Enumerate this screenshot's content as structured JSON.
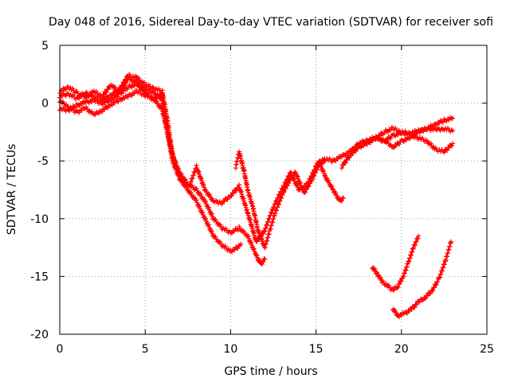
{
  "chart_data": {
    "type": "scatter",
    "title": "Day 048 of 2016, Sidereal Day-to-day VTEC variation (SDTVAR) for receiver sofi",
    "xlabel": "GPS time / hours",
    "ylabel": "SDTVAR / TECUs",
    "xlim": [
      0,
      25
    ],
    "ylim": [
      -20,
      5
    ],
    "xticks": [
      0,
      5,
      10,
      15,
      20,
      25
    ],
    "yticks": [
      -20,
      -15,
      -10,
      -5,
      0,
      5
    ],
    "xtick_labels": [
      "0",
      "5",
      "10",
      "15",
      "20",
      "25"
    ],
    "ytick_labels": [
      "-20",
      "-15",
      "-10",
      "-5",
      "0",
      "5"
    ],
    "grid": true,
    "marker": "+",
    "color": "#ff0000",
    "series": [
      {
        "name": "track-1",
        "x": [
          0.0,
          0.5,
          1.0,
          1.5,
          2.0,
          2.5,
          3.0,
          3.5,
          4.0,
          4.5,
          5.0,
          5.5,
          6.0,
          6.3,
          6.6,
          7.0,
          7.5,
          8.0,
          8.5,
          9.0,
          9.5,
          10.0,
          10.3,
          10.6
        ],
        "y": [
          1.0,
          1.4,
          0.9,
          0.5,
          1.0,
          0.6,
          1.6,
          0.9,
          2.1,
          1.8,
          1.2,
          0.9,
          0.3,
          -2.5,
          -5.0,
          -6.5,
          -7.5,
          -8.5,
          -10.0,
          -11.5,
          -12.3,
          -12.8,
          -12.6,
          -12.2
        ]
      },
      {
        "name": "track-2",
        "x": [
          0.0,
          0.5,
          1.0,
          1.5,
          2.0,
          2.5,
          3.0,
          3.5,
          4.0,
          4.5,
          5.0,
          5.5,
          6.0,
          6.3,
          6.6,
          7.0,
          7.5,
          8.0,
          8.5,
          9.0,
          9.5,
          10.0,
          10.5,
          11.0,
          11.3,
          11.6,
          11.8,
          12.0
        ],
        "y": [
          0.6,
          0.8,
          0.4,
          0.9,
          0.5,
          0.3,
          0.7,
          1.2,
          2.4,
          2.2,
          1.6,
          1.3,
          1.0,
          -1.5,
          -4.5,
          -6.0,
          -7.0,
          -7.5,
          -8.5,
          -10.0,
          -10.8,
          -11.2,
          -10.8,
          -11.5,
          -12.5,
          -13.5,
          -13.9,
          -13.5
        ]
      },
      {
        "name": "track-3",
        "x": [
          0.0,
          0.5,
          1.0,
          1.5,
          2.0,
          2.5,
          3.0,
          3.5,
          4.0,
          4.5,
          5.0,
          5.5,
          6.0,
          6.4,
          6.8,
          7.2,
          7.6,
          8.0,
          8.5,
          9.0,
          9.5,
          10.0,
          10.5,
          11.0,
          11.5,
          12.0,
          12.5,
          13.0,
          13.5,
          14.0,
          14.5,
          15.0,
          15.5
        ],
        "y": [
          -0.5,
          -0.6,
          -0.2,
          0.1,
          0.2,
          0.0,
          0.3,
          0.8,
          1.4,
          1.6,
          0.9,
          0.4,
          -0.6,
          -3.2,
          -5.5,
          -6.8,
          -7.1,
          -5.5,
          -7.5,
          -8.5,
          -8.6,
          -8.0,
          -7.2,
          -9.5,
          -12.0,
          -11.0,
          -9.0,
          -7.5,
          -6.0,
          -7.5,
          -7.0,
          -5.5,
          -5.0
        ]
      },
      {
        "name": "track-4",
        "x": [
          0.0,
          0.5,
          1.0,
          1.5,
          2.0,
          2.5,
          3.0,
          3.5,
          4.0,
          4.5,
          5.0,
          5.5,
          6.0
        ],
        "y": [
          0.2,
          -0.3,
          -0.8,
          -0.4,
          -1.0,
          -0.6,
          -0.1,
          0.3,
          0.6,
          1.0,
          0.7,
          0.3,
          0.8
        ]
      },
      {
        "name": "track-5",
        "x": [
          10.3,
          10.5,
          10.8,
          11.0,
          11.3,
          11.6,
          12.0,
          12.3,
          12.6,
          13.0,
          13.4,
          13.8,
          14.3,
          14.8,
          15.2,
          15.6,
          16.0,
          16.4,
          16.6
        ],
        "y": [
          -5.5,
          -4.2,
          -6.0,
          -7.5,
          -9.0,
          -11.0,
          -12.5,
          -11.0,
          -9.5,
          -8.0,
          -6.8,
          -6.0,
          -7.8,
          -6.5,
          -5.2,
          -6.5,
          -7.5,
          -8.5,
          -8.2
        ]
      },
      {
        "name": "track-6",
        "x": [
          15.0,
          15.5,
          16.0,
          16.5,
          17.0,
          17.5,
          18.0,
          18.5,
          19.0,
          19.5,
          20.0,
          20.5,
          21.0,
          21.5,
          22.0,
          22.5,
          23.0
        ],
        "y": [
          -5.3,
          -4.8,
          -5.0,
          -4.6,
          -4.2,
          -3.5,
          -3.2,
          -3.0,
          -2.5,
          -2.2,
          -2.5,
          -2.6,
          -2.4,
          -2.2,
          -2.3,
          -2.2,
          -2.4
        ]
      },
      {
        "name": "track-7",
        "x": [
          16.5,
          17.0,
          17.5,
          18.0,
          18.5,
          19.0,
          19.5,
          20.0,
          20.5,
          21.0,
          21.5,
          22.0,
          22.5,
          23.0
        ],
        "y": [
          -5.5,
          -4.5,
          -3.8,
          -3.5,
          -3.0,
          -3.2,
          -3.8,
          -3.3,
          -3.0,
          -2.5,
          -2.2,
          -1.8,
          -1.5,
          -1.3
        ]
      },
      {
        "name": "track-8",
        "x": [
          18.5,
          19.0,
          19.5,
          20.0,
          20.5,
          21.0,
          21.5,
          22.0,
          22.5,
          23.0
        ],
        "y": [
          -3.0,
          -3.3,
          -2.8,
          -2.6,
          -2.7,
          -3.0,
          -3.3,
          -4.0,
          -4.2,
          -3.5
        ]
      },
      {
        "name": "track-9",
        "x": [
          18.3,
          18.6,
          18.9,
          19.2,
          19.5,
          19.8,
          20.1,
          20.4,
          20.7,
          21.0
        ],
        "y": [
          -14.2,
          -14.8,
          -15.5,
          -15.8,
          -16.2,
          -15.8,
          -15.0,
          -13.8,
          -12.5,
          -11.5
        ]
      },
      {
        "name": "track-10",
        "x": [
          19.5,
          19.8,
          20.2,
          20.6,
          21.0,
          21.4,
          21.8,
          22.2,
          22.6,
          22.9
        ],
        "y": [
          -17.8,
          -18.4,
          -18.2,
          -17.8,
          -17.2,
          -16.8,
          -16.2,
          -15.2,
          -13.5,
          -12.0
        ]
      }
    ]
  }
}
